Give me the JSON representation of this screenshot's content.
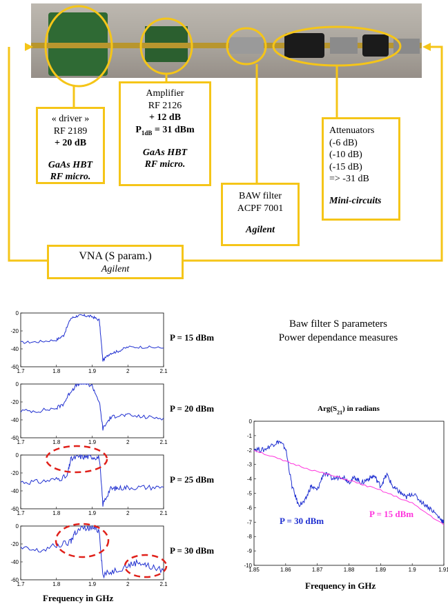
{
  "boxes": {
    "driver": {
      "l1": "« driver »",
      "l2": "RF 2189",
      "l3": "+ 20 dB",
      "l4": "GaAs HBT",
      "l5": "RF micro."
    },
    "amp": {
      "l1": "Amplifier",
      "l2": "RF 2126",
      "l3": "+ 12 dB",
      "l4a": "P",
      "l4sub": "1dB",
      "l4b": " = 31 dBm",
      "l5": "GaAs HBT",
      "l6": "RF micro."
    },
    "baw": {
      "l1": "BAW filter",
      "l2": "ACPF 7001",
      "l3": "Agilent"
    },
    "att": {
      "l1": "Attenuators",
      "l2": "(-6 dB)",
      "l3": "(-10 dB)",
      "l4": "(-15 dB)",
      "l5": "=> -31 dB",
      "l6": "Mini-circuits"
    },
    "vna": {
      "l1": "VNA (S param.)",
      "l2": "Agilent"
    }
  },
  "title": {
    "l1": "Baw filter S parameters",
    "l2": "Power dependance measures"
  },
  "powers": [
    "P = 15 dBm",
    "P = 20 dBm",
    "P = 25 dBm",
    "P = 30 dBm"
  ],
  "xlabel": "Frequency in GHz",
  "colors": {
    "yellow": "#f5c518",
    "blue": "#1f2fd0",
    "magenta": "#ff33dd",
    "red": "#e0201a"
  },
  "chart_data": [
    {
      "type": "line",
      "name": "P = 15 dBm",
      "x": [
        1.7,
        1.75,
        1.8,
        1.82,
        1.84,
        1.86,
        1.88,
        1.9,
        1.92,
        1.93,
        1.95,
        1.97,
        2.0,
        2.05,
        2.1
      ],
      "y": [
        -33,
        -32,
        -30,
        -25,
        -6,
        -3,
        -3,
        -4,
        -8,
        -53,
        -45,
        -43,
        -38,
        -38,
        -39
      ],
      "xlim": [
        1.7,
        2.1
      ],
      "ylim": [
        -60,
        0
      ],
      "xticks": [
        "1.7",
        "1.8",
        "1.9",
        "2",
        "2.1"
      ],
      "yticks": [
        "0",
        "-20",
        "-40",
        "-60"
      ]
    },
    {
      "type": "line",
      "name": "P = 20 dBm",
      "x": [
        1.7,
        1.75,
        1.8,
        1.82,
        1.84,
        1.86,
        1.88,
        1.9,
        1.92,
        1.93,
        1.95,
        1.97,
        2.0,
        2.05,
        2.1
      ],
      "y": [
        -30,
        -30,
        -27,
        -22,
        -8,
        0,
        1,
        -2,
        -20,
        -50,
        -38,
        -35,
        -35,
        -37,
        -38
      ],
      "xlim": [
        1.7,
        2.1
      ],
      "ylim": [
        -60,
        0
      ],
      "xticks": [
        "1.7",
        "1.8",
        "1.9",
        "2",
        "2.1"
      ],
      "yticks": [
        "0",
        "-20",
        "-40",
        "-60"
      ]
    },
    {
      "type": "line",
      "name": "P = 25 dBm",
      "x": [
        1.7,
        1.75,
        1.8,
        1.83,
        1.84,
        1.86,
        1.88,
        1.9,
        1.92,
        1.93,
        1.95,
        1.97,
        2.0,
        2.05,
        2.1
      ],
      "y": [
        -30,
        -30,
        -27,
        -24,
        -5,
        -2,
        -2,
        -2,
        -3,
        -55,
        -38,
        -37,
        -36,
        -36,
        -36
      ],
      "xlim": [
        1.7,
        2.1
      ],
      "ylim": [
        -60,
        0
      ],
      "xticks": [
        "1.7",
        "1.8",
        "1.9",
        "2",
        "2.1"
      ],
      "yticks": [
        "0",
        "-20",
        "-40",
        "-60"
      ]
    },
    {
      "type": "line",
      "name": "P = 30 dBm",
      "x": [
        1.7,
        1.75,
        1.8,
        1.84,
        1.85,
        1.87,
        1.9,
        1.92,
        1.93,
        1.96,
        2.0,
        2.03,
        2.06,
        2.1
      ],
      "y": [
        -25,
        -28,
        -22,
        -18,
        -8,
        -3,
        -2,
        -5,
        -55,
        -50,
        -44,
        -40,
        -45,
        -50
      ],
      "xlim": [
        1.7,
        2.1
      ],
      "ylim": [
        -60,
        0
      ],
      "xticks": [
        "1.7",
        "1.8",
        "1.9",
        "2",
        "2.1"
      ],
      "yticks": [
        "0",
        "-20",
        "-40",
        "-60"
      ]
    },
    {
      "type": "line",
      "title": "Arg(S21) in radians",
      "xlim": [
        1.85,
        1.91
      ],
      "ylim": [
        -10,
        0
      ],
      "xticks": [
        "1.85",
        "1.86",
        "1.87",
        "1.88",
        "1.89",
        "1.9",
        "1.91"
      ],
      "yticks": [
        "0",
        "-1",
        "-2",
        "-3",
        "-4",
        "-5",
        "-6",
        "-7",
        "-8",
        "-9",
        "-10"
      ],
      "series": [
        {
          "name": "P = 30 dBm",
          "x": [
            1.85,
            1.853,
            1.856,
            1.858,
            1.86,
            1.862,
            1.864,
            1.866,
            1.868,
            1.87,
            1.872,
            1.875,
            1.878,
            1.88,
            1.882,
            1.884,
            1.886,
            1.888,
            1.89,
            1.892,
            1.894,
            1.896,
            1.898,
            1.9,
            1.903,
            1.906,
            1.909,
            1.91
          ],
          "y": [
            -1.9,
            -2.0,
            -1.6,
            -1.4,
            -1.9,
            -4.5,
            -5.8,
            -5.6,
            -4.5,
            -4.8,
            -3.6,
            -4.0,
            -3.8,
            -4.2,
            -3.9,
            -4.3,
            -4.0,
            -3.8,
            -4.5,
            -3.7,
            -4.6,
            -4.9,
            -5.3,
            -5.0,
            -5.6,
            -6.1,
            -6.8,
            -7.0
          ]
        },
        {
          "name": "P = 15 dBm",
          "x": [
            1.85,
            1.86,
            1.87,
            1.88,
            1.89,
            1.9,
            1.91
          ],
          "y": [
            -2.0,
            -2.8,
            -3.5,
            -4.1,
            -4.8,
            -5.7,
            -7.2
          ]
        }
      ]
    }
  ]
}
